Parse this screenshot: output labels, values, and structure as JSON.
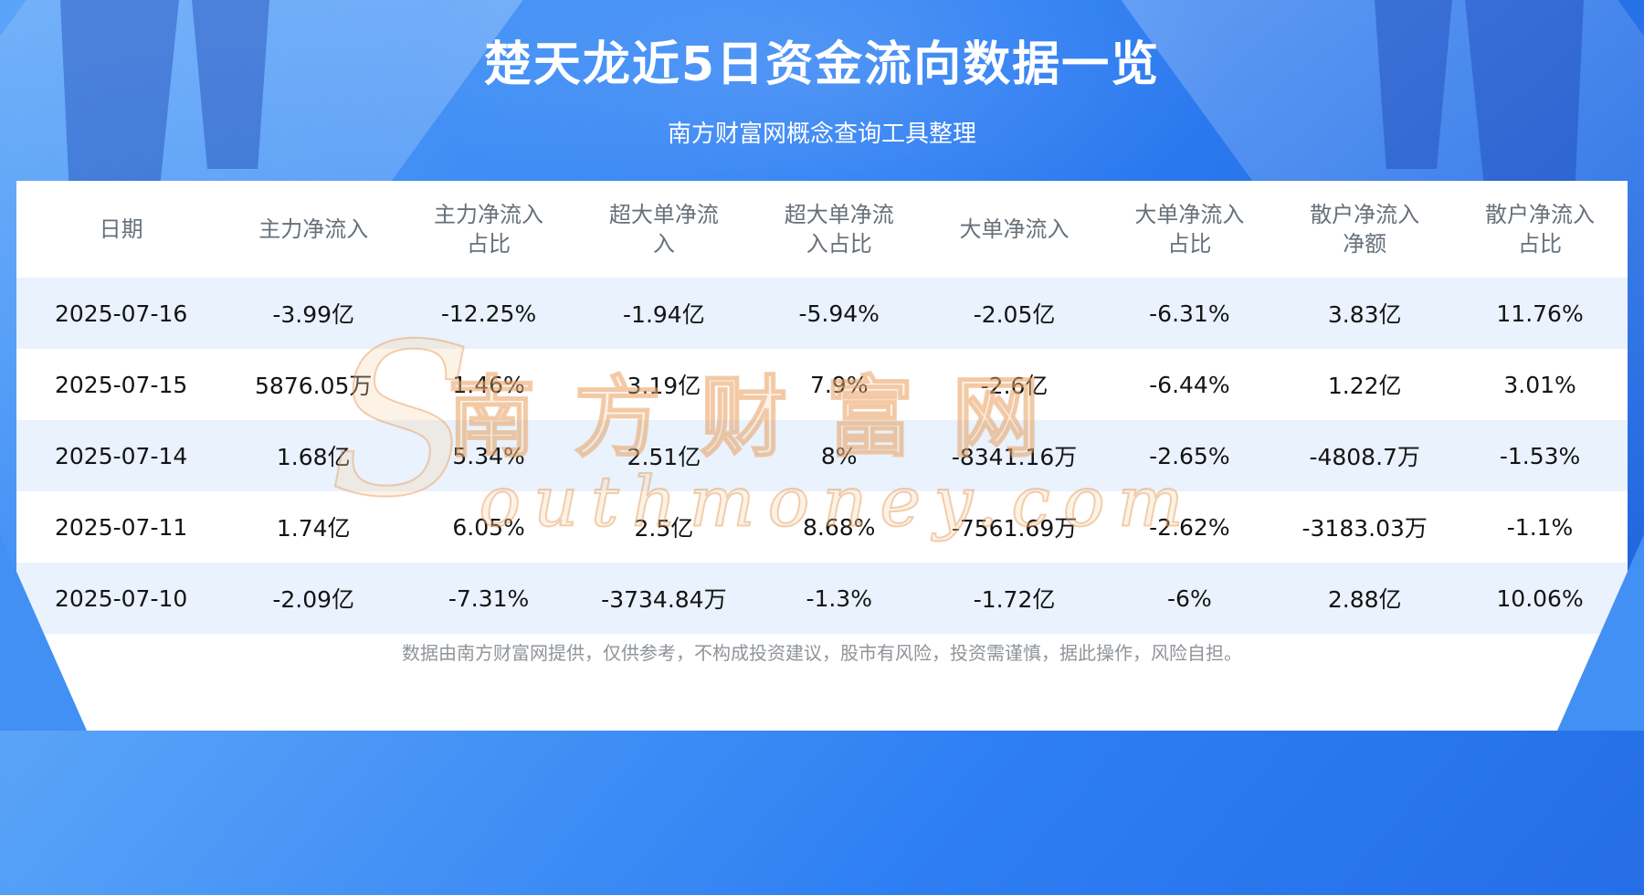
{
  "page": {
    "title": "楚天龙近5日资金流向数据一览",
    "subtitle": "南方财富网概念查询工具整理",
    "footer": "数据由南方财富网提供，仅供参考，不构成投资建议，股市有风险，投资需谨慎，据此操作，风险自担。"
  },
  "watermark": {
    "initial": "S",
    "cn": "南方财富网",
    "en": "outhmoney.com"
  },
  "chart_data": {
    "type": "table",
    "title": "楚天龙近5日资金流向数据一览",
    "columns": [
      "日期",
      "主力净流入",
      "主力净流入占比",
      "超大单净流入",
      "超大单净流入占比",
      "大单净流入",
      "大单净流入占比",
      "散户净流入净额",
      "散户净流入占比"
    ],
    "rows": [
      [
        "2025-07-16",
        "-3.99亿",
        "-12.25%",
        "-1.94亿",
        "-5.94%",
        "-2.05亿",
        "-6.31%",
        "3.83亿",
        "11.76%"
      ],
      [
        "2025-07-15",
        "5876.05万",
        "1.46%",
        "3.19亿",
        "7.9%",
        "-2.6亿",
        "-6.44%",
        "1.22亿",
        "3.01%"
      ],
      [
        "2025-07-14",
        "1.68亿",
        "5.34%",
        "2.51亿",
        "8%",
        "-8341.16万",
        "-2.65%",
        "-4808.7万",
        "-1.53%"
      ],
      [
        "2025-07-11",
        "1.74亿",
        "6.05%",
        "2.5亿",
        "8.68%",
        "-7561.69万",
        "-2.62%",
        "-3183.03万",
        "-1.1%"
      ],
      [
        "2025-07-10",
        "-2.09亿",
        "-7.31%",
        "-3734.84万",
        "-1.3%",
        "-1.72亿",
        "-6%",
        "2.88亿",
        "10.06%"
      ]
    ]
  },
  "colors": {
    "background_blue": "#2e7ff3",
    "row_stripe": "#e9f2fd",
    "header_text": "#66707a",
    "cell_text": "#141414",
    "watermark_orange": "#e49655",
    "footer_text": "#8f9499"
  }
}
